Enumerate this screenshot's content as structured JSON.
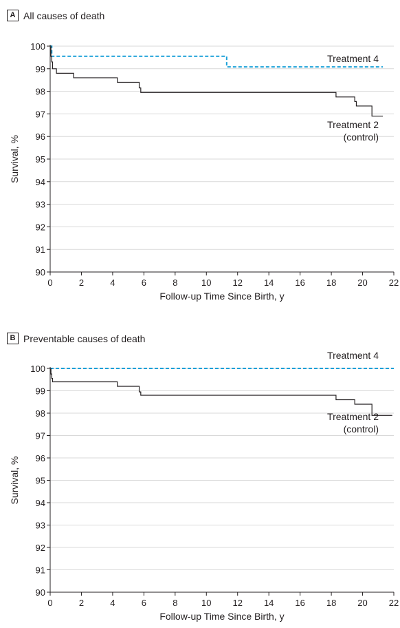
{
  "chart_data": [
    {
      "type": "line",
      "panel": "A",
      "title": "All causes of death",
      "xlabel": "Follow-up Time Since Birth, y",
      "ylabel": "Survival, %",
      "xlim": [
        0,
        22
      ],
      "ylim": [
        90,
        100
      ],
      "xticks": [
        "0",
        "2",
        "4",
        "6",
        "8",
        "10",
        "12",
        "14",
        "16",
        "18",
        "20",
        "22"
      ],
      "yticks": [
        "90",
        "91",
        "92",
        "93",
        "94",
        "95",
        "96",
        "97",
        "98",
        "99",
        "100"
      ],
      "grid": "horizontal",
      "series": [
        {
          "name": "Treatment 4",
          "label_lines": [
            "Treatment 4"
          ],
          "style": "dashed",
          "color": "#1aa0d8",
          "points": [
            [
              0,
              100
            ],
            [
              0.1,
              100
            ],
            [
              0.1,
              99.55
            ],
            [
              11.3,
              99.55
            ],
            [
              11.3,
              99.08
            ],
            [
              21.3,
              99.08
            ]
          ]
        },
        {
          "name": "Treatment 2 (control)",
          "label_lines": [
            "Treatment 2",
            "(control)"
          ],
          "style": "solid",
          "color": "#231f20",
          "points": [
            [
              0,
              100
            ],
            [
              0.05,
              100
            ],
            [
              0.05,
              99.55
            ],
            [
              0.1,
              99.55
            ],
            [
              0.1,
              99.3
            ],
            [
              0.15,
              99.3
            ],
            [
              0.15,
              99.0
            ],
            [
              0.4,
              99.0
            ],
            [
              0.4,
              98.8
            ],
            [
              1.5,
              98.8
            ],
            [
              1.5,
              98.6
            ],
            [
              4.3,
              98.6
            ],
            [
              4.3,
              98.4
            ],
            [
              5.7,
              98.4
            ],
            [
              5.7,
              98.15
            ],
            [
              5.8,
              98.15
            ],
            [
              5.8,
              97.95
            ],
            [
              18.3,
              97.95
            ],
            [
              18.3,
              97.75
            ],
            [
              19.5,
              97.75
            ],
            [
              19.5,
              97.55
            ],
            [
              19.6,
              97.55
            ],
            [
              19.6,
              97.35
            ],
            [
              20.6,
              97.35
            ],
            [
              20.6,
              96.9
            ],
            [
              21.3,
              96.9
            ]
          ]
        }
      ]
    },
    {
      "type": "line",
      "panel": "B",
      "title": "Preventable causes of death",
      "xlabel": "Follow-up Time Since Birth, y",
      "ylabel": "Survival, %",
      "xlim": [
        0,
        22
      ],
      "ylim": [
        90,
        100
      ],
      "xticks": [
        "0",
        "2",
        "4",
        "6",
        "8",
        "10",
        "12",
        "14",
        "16",
        "18",
        "20",
        "22"
      ],
      "yticks": [
        "90",
        "91",
        "92",
        "93",
        "94",
        "95",
        "96",
        "97",
        "98",
        "99",
        "100"
      ],
      "grid": "horizontal",
      "series": [
        {
          "name": "Treatment 4",
          "label_lines": [
            "Treatment 4"
          ],
          "style": "dashed",
          "color": "#1aa0d8",
          "points": [
            [
              0,
              100
            ],
            [
              22,
              100
            ]
          ]
        },
        {
          "name": "Treatment 2 (control)",
          "label_lines": [
            "Treatment 2",
            "(control)"
          ],
          "style": "solid",
          "color": "#231f20",
          "points": [
            [
              0,
              100
            ],
            [
              0.05,
              100
            ],
            [
              0.05,
              99.75
            ],
            [
              0.1,
              99.75
            ],
            [
              0.1,
              99.55
            ],
            [
              0.15,
              99.55
            ],
            [
              0.15,
              99.4
            ],
            [
              4.3,
              99.4
            ],
            [
              4.3,
              99.2
            ],
            [
              5.7,
              99.2
            ],
            [
              5.7,
              98.95
            ],
            [
              5.8,
              98.95
            ],
            [
              5.8,
              98.8
            ],
            [
              18.3,
              98.8
            ],
            [
              18.3,
              98.6
            ],
            [
              19.5,
              98.6
            ],
            [
              19.5,
              98.4
            ],
            [
              20.6,
              98.4
            ],
            [
              20.6,
              97.9
            ],
            [
              21.9,
              97.9
            ]
          ]
        }
      ]
    }
  ]
}
